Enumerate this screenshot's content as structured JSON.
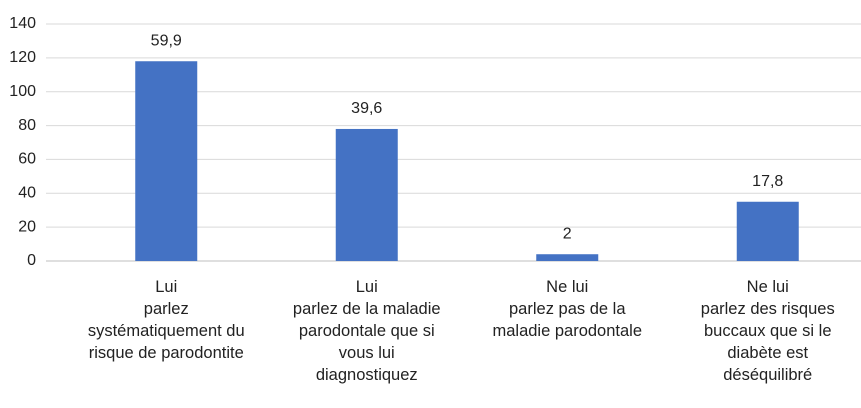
{
  "chart_data": {
    "type": "bar",
    "categories": [
      "Lui\nparlez\nsystématiquement du\nrisque de parodontite",
      "Lui\nparlez de la maladie\nparodontale que si\nvous lui\ndiagnostiquez",
      "Ne lui\nparlez pas de la\nmaladie parodontale",
      "Ne lui\nparlez des risques\nbuccaux que si le\ndiabète est\ndéséquilibré"
    ],
    "values": [
      118,
      78,
      4,
      35
    ],
    "data_labels": [
      "59,9",
      "39,6",
      "2",
      "17,8"
    ],
    "color": "#4472c4",
    "ylim": [
      0,
      140
    ],
    "yticks": [
      0,
      20,
      40,
      60,
      80,
      100,
      120,
      140
    ],
    "grid": true
  }
}
